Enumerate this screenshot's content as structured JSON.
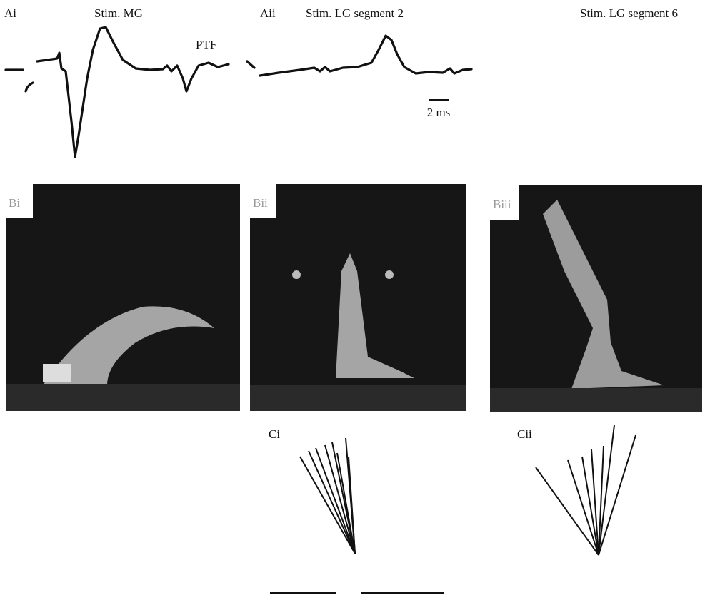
{
  "panels": {
    "ai": {
      "label": "Ai",
      "title": "Stim. MG",
      "annotation": "PTF"
    },
    "aii": {
      "label": "Aii",
      "title": "Stim. LG segment 2",
      "scale_bar": "2 ms"
    },
    "aiii": {
      "title": "Stim. LG segment 6"
    },
    "bi": {
      "label": "Bi"
    },
    "bii": {
      "label": "Bii"
    },
    "biii": {
      "label": "Biii"
    },
    "ci": {
      "label": "Ci"
    },
    "cii": {
      "label": "Cii"
    }
  }
}
